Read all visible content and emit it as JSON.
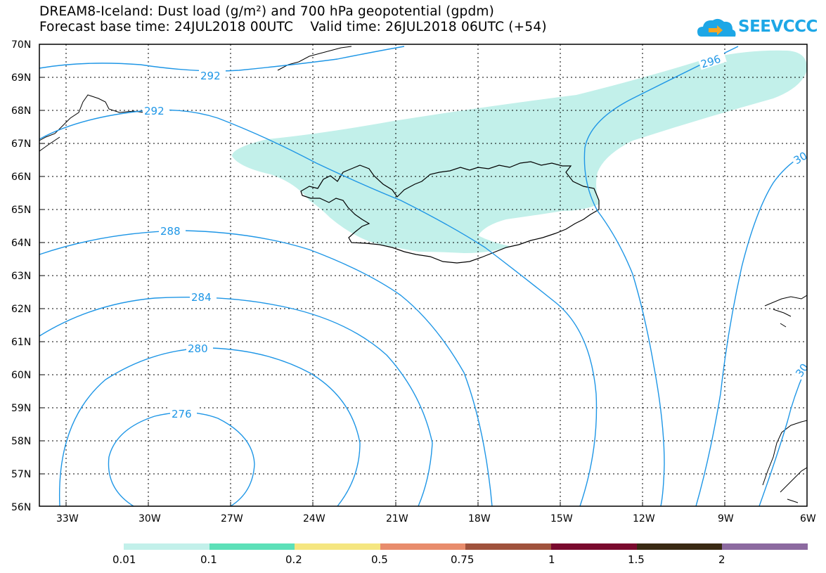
{
  "title": {
    "line1": "DREAM8-Iceland: Dust load (g/m²) and 700 hPa geopotential (gpdm)",
    "line2": "Forecast base time: 24JUL2018 00UTC    Valid time: 26JUL2018 06UTC (+54)"
  },
  "logo": {
    "text": "SEEVCCC",
    "color": "#1ea7e6"
  },
  "axes": {
    "lat_labels": [
      "70N",
      "69N",
      "68N",
      "67N",
      "66N",
      "65N",
      "64N",
      "63N",
      "62N",
      "61N",
      "60N",
      "59N",
      "58N",
      "57N",
      "56N"
    ],
    "lon_labels": [
      "33W",
      "30W",
      "27W",
      "24W",
      "21W",
      "18W",
      "15W",
      "12W",
      "9W",
      "6W"
    ]
  },
  "contours": {
    "color": "#1e96e6",
    "labels": [
      "292",
      "292",
      "288",
      "284",
      "280",
      "276",
      "296",
      "30",
      "30"
    ]
  },
  "dust_fill_color": "#c2f0ea",
  "legend": {
    "labels": [
      "0.01",
      "0.1",
      "0.2",
      "0.5",
      "0.75",
      "1",
      "1.5",
      "2"
    ],
    "colors": [
      "#c2f0ea",
      "#5ce0b8",
      "#f5e680",
      "#e88c6c",
      "#a0523c",
      "#7a0a2e",
      "#3a2a14",
      "#8c6aa0"
    ]
  }
}
